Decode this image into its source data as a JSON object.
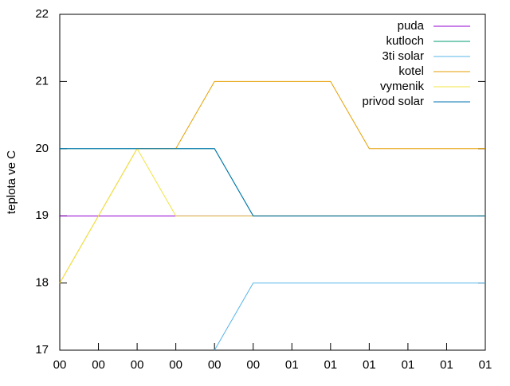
{
  "chart_data": {
    "type": "line",
    "y_label": "teplota ve C",
    "x": [
      0,
      1,
      2,
      3,
      4,
      5,
      6,
      7,
      8,
      9,
      10,
      11
    ],
    "xlim": [
      0,
      11
    ],
    "xticks": [
      {
        "value": 0,
        "label": "00"
      },
      {
        "value": 1,
        "label": "00"
      },
      {
        "value": 2,
        "label": "00"
      },
      {
        "value": 3,
        "label": "00"
      },
      {
        "value": 4,
        "label": "00"
      },
      {
        "value": 5,
        "label": "00"
      },
      {
        "value": 6,
        "label": "01"
      },
      {
        "value": 7,
        "label": "01"
      },
      {
        "value": 8,
        "label": "01"
      },
      {
        "value": 9,
        "label": "01"
      },
      {
        "value": 10,
        "label": "01"
      },
      {
        "value": 11,
        "label": "01"
      }
    ],
    "ylim": [
      17,
      22
    ],
    "yticks": [
      17,
      18,
      19,
      20,
      21,
      22
    ],
    "legend": "top-right",
    "series": [
      {
        "name": "puda",
        "color": "#9400d3",
        "values": [
          19,
          19,
          19,
          19,
          19,
          19,
          19,
          19,
          19,
          19,
          19,
          19
        ]
      },
      {
        "name": "kutloch",
        "color": "#009e73",
        "values": [
          20,
          20,
          20,
          20,
          20,
          19,
          19,
          19,
          19,
          19,
          19,
          19
        ]
      },
      {
        "name": "3ti solar",
        "color": "#56b4e9",
        "values": [
          null,
          null,
          null,
          null,
          17,
          18,
          18,
          18,
          18,
          18,
          18,
          18
        ]
      },
      {
        "name": "kotel",
        "color": "#e69f00",
        "values": [
          18,
          19,
          20,
          20,
          21,
          21,
          21,
          21,
          20,
          20,
          20,
          20
        ]
      },
      {
        "name": "vymenik",
        "color": "#f0e442",
        "values": [
          18,
          19,
          20,
          19,
          19,
          19,
          19,
          19,
          19,
          19,
          19,
          19
        ]
      },
      {
        "name": "privod solar",
        "color": "#0072b2",
        "values": [
          20,
          20,
          20,
          20,
          20,
          19,
          19,
          19,
          19,
          19,
          19,
          19
        ]
      }
    ]
  }
}
